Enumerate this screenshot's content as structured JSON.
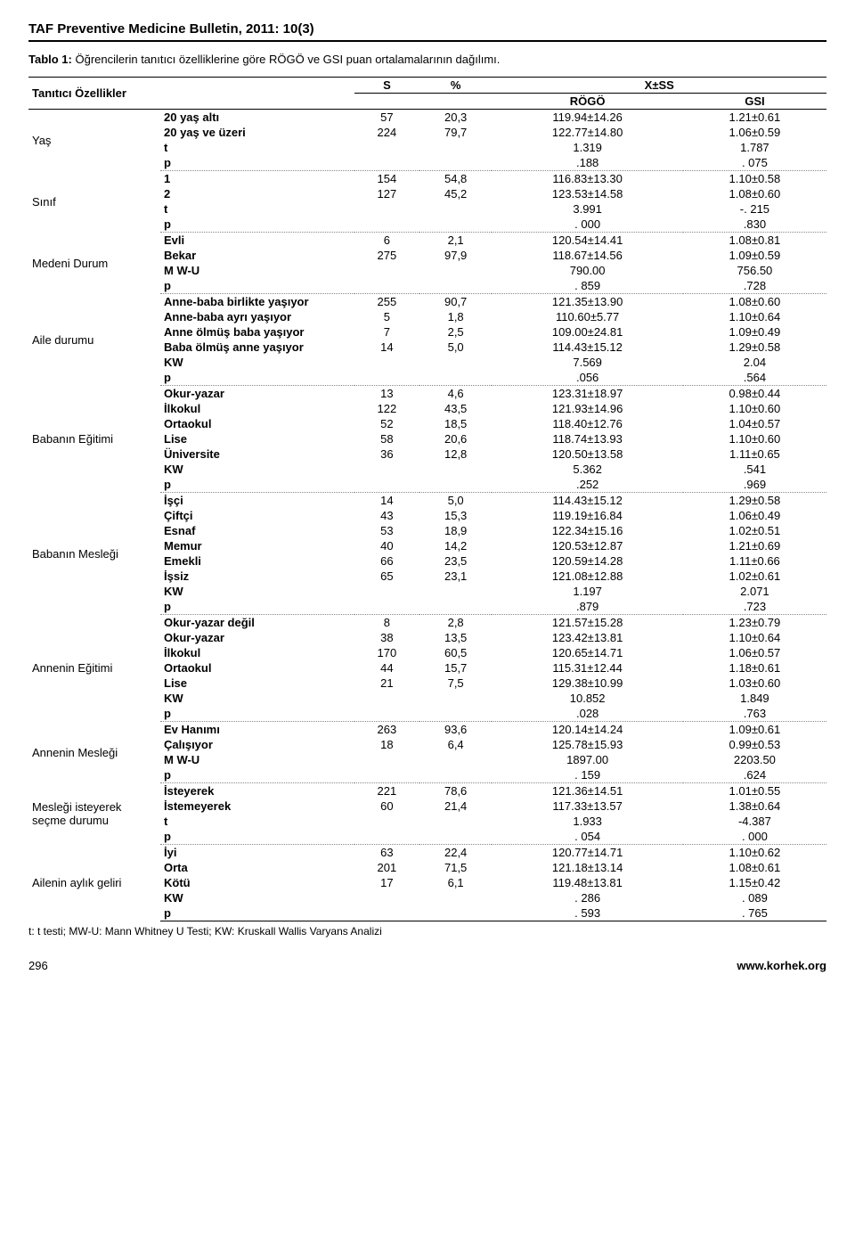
{
  "journal_title": "TAF Preventive Medicine Bulletin, 2011: 10(3)",
  "caption_prefix": "Tablo 1:",
  "caption_text": "Öğrencilerin tanıtıcı özelliklerine göre RÖGÖ ve GSI puan ortalamalarının dağılımı.",
  "headers": {
    "group": "Tanıtıcı Özellikler",
    "S": "S",
    "pct": "%",
    "xss": "X±SS",
    "rogo": "RÖGÖ",
    "gsi": "GSI"
  },
  "groups": [
    {
      "name": "Yaş",
      "rows": [
        {
          "label": "20 yaş altı",
          "S": "57",
          "pct": "20,3",
          "rogo": "119.94±14.26",
          "gsi": "1.21±0.61"
        },
        {
          "label": "20 yaş ve üzeri",
          "S": "224",
          "pct": "79,7",
          "rogo": "122.77±14.80",
          "gsi": "1.06±0.59"
        },
        {
          "label": "t",
          "S": "",
          "pct": "",
          "rogo": "1.319",
          "gsi": "1.787"
        },
        {
          "label": "p",
          "S": "",
          "pct": "",
          "rogo": ".188",
          "gsi": ". 075"
        }
      ]
    },
    {
      "name": "Sınıf",
      "rows": [
        {
          "label": "1",
          "S": "154",
          "pct": "54,8",
          "rogo": "116.83±13.30",
          "gsi": "1.10±0.58"
        },
        {
          "label": "2",
          "S": "127",
          "pct": "45,2",
          "rogo": "123.53±14.58",
          "gsi": "1.08±0.60"
        },
        {
          "label": "t",
          "S": "",
          "pct": "",
          "rogo": "3.991",
          "gsi": "-. 215"
        },
        {
          "label": "p",
          "S": "",
          "pct": "",
          "rogo": ". 000",
          "gsi": ".830"
        }
      ]
    },
    {
      "name": "Medeni Durum",
      "rows": [
        {
          "label": "Evli",
          "S": "6",
          "pct": "2,1",
          "rogo": "120.54±14.41",
          "gsi": "1.08±0.81"
        },
        {
          "label": "Bekar",
          "S": "275",
          "pct": "97,9",
          "rogo": "118.67±14.56",
          "gsi": "1.09±0.59"
        },
        {
          "label": "M W-U",
          "S": "",
          "pct": "",
          "rogo": "790.00",
          "gsi": "756.50"
        },
        {
          "label": "p",
          "S": "",
          "pct": "",
          "rogo": ". 859",
          "gsi": ".728"
        }
      ]
    },
    {
      "name": "Aile durumu",
      "rows": [
        {
          "label": "Anne-baba birlikte yaşıyor",
          "S": "255",
          "pct": "90,7",
          "rogo": "121.35±13.90",
          "gsi": "1.08±0.60"
        },
        {
          "label": "Anne-baba ayrı yaşıyor",
          "S": "5",
          "pct": "1,8",
          "rogo": "110.60±5.77",
          "gsi": "1.10±0.64"
        },
        {
          "label": "Anne ölmüş baba yaşıyor",
          "S": "7",
          "pct": "2,5",
          "rogo": "109.00±24.81",
          "gsi": "1.09±0.49"
        },
        {
          "label": "Baba ölmüş anne yaşıyor",
          "S": "14",
          "pct": "5,0",
          "rogo": "114.43±15.12",
          "gsi": "1.29±0.58"
        },
        {
          "label": "KW",
          "S": "",
          "pct": "",
          "rogo": "7.569",
          "gsi": "2.04"
        },
        {
          "label": "p",
          "S": "",
          "pct": "",
          "rogo": ".056",
          "gsi": ".564"
        }
      ]
    },
    {
      "name": "Babanın Eğitimi",
      "rows": [
        {
          "label": "Okur-yazar",
          "S": "13",
          "pct": "4,6",
          "rogo": "123.31±18.97",
          "gsi": "0.98±0.44"
        },
        {
          "label": "İlkokul",
          "S": "122",
          "pct": "43,5",
          "rogo": "121.93±14.96",
          "gsi": "1.10±0.60"
        },
        {
          "label": "Ortaokul",
          "S": "52",
          "pct": "18,5",
          "rogo": "118.40±12.76",
          "gsi": "1.04±0.57"
        },
        {
          "label": "Lise",
          "S": "58",
          "pct": "20,6",
          "rogo": "118.74±13.93",
          "gsi": "1.10±0.60"
        },
        {
          "label": "Üniversite",
          "S": "36",
          "pct": "12,8",
          "rogo": "120.50±13.58",
          "gsi": "1.11±0.65"
        },
        {
          "label": "KW",
          "S": "",
          "pct": "",
          "rogo": "5.362",
          "gsi": ".541"
        },
        {
          "label": "p",
          "S": "",
          "pct": "",
          "rogo": ".252",
          "gsi": ".969"
        }
      ]
    },
    {
      "name": "Babanın Mesleği",
      "rows": [
        {
          "label": "İşçi",
          "S": "14",
          "pct": "5,0",
          "rogo": "114.43±15.12",
          "gsi": "1.29±0.58"
        },
        {
          "label": "Çiftçi",
          "S": "43",
          "pct": "15,3",
          "rogo": "119.19±16.84",
          "gsi": "1.06±0.49"
        },
        {
          "label": "Esnaf",
          "S": "53",
          "pct": "18,9",
          "rogo": "122.34±15.16",
          "gsi": "1.02±0.51"
        },
        {
          "label": "Memur",
          "S": "40",
          "pct": "14,2",
          "rogo": "120.53±12.87",
          "gsi": "1.21±0.69"
        },
        {
          "label": "Emekli",
          "S": "66",
          "pct": "23,5",
          "rogo": "120.59±14.28",
          "gsi": "1.11±0.66"
        },
        {
          "label": "İşsiz",
          "S": "65",
          "pct": "23,1",
          "rogo": "121.08±12.88",
          "gsi": "1.02±0.61"
        },
        {
          "label": "KW",
          "S": "",
          "pct": "",
          "rogo": "1.197",
          "gsi": "2.071"
        },
        {
          "label": "p",
          "S": "",
          "pct": "",
          "rogo": ".879",
          "gsi": ".723"
        }
      ]
    },
    {
      "name": "Annenin Eğitimi",
      "rows": [
        {
          "label": "Okur-yazar değil",
          "S": "8",
          "pct": "2,8",
          "rogo": "121.57±15.28",
          "gsi": "1.23±0.79"
        },
        {
          "label": "Okur-yazar",
          "S": "38",
          "pct": "13,5",
          "rogo": "123.42±13.81",
          "gsi": "1.10±0.64"
        },
        {
          "label": "İlkokul",
          "S": "170",
          "pct": "60,5",
          "rogo": "120.65±14.71",
          "gsi": "1.06±0.57"
        },
        {
          "label": "Ortaokul",
          "S": "44",
          "pct": "15,7",
          "rogo": "115.31±12.44",
          "gsi": "1.18±0.61"
        },
        {
          "label": "Lise",
          "S": "21",
          "pct": "7,5",
          "rogo": "129.38±10.99",
          "gsi": "1.03±0.60"
        },
        {
          "label": "KW",
          "S": "",
          "pct": "",
          "rogo": "10.852",
          "gsi": "1.849"
        },
        {
          "label": "p",
          "S": "",
          "pct": "",
          "rogo": ".028",
          "gsi": ".763"
        }
      ]
    },
    {
      "name": "Annenin Mesleği",
      "rows": [
        {
          "label": "Ev Hanımı",
          "S": "263",
          "pct": "93,6",
          "rogo": "120.14±14.24",
          "gsi": "1.09±0.61"
        },
        {
          "label": "Çalışıyor",
          "S": "18",
          "pct": "6,4",
          "rogo": "125.78±15.93",
          "gsi": "0.99±0.53"
        },
        {
          "label": "M W-U",
          "S": "",
          "pct": "",
          "rogo": "1897.00",
          "gsi": "2203.50"
        },
        {
          "label": "p",
          "S": "",
          "pct": "",
          "rogo": ". 159",
          "gsi": ".624"
        }
      ]
    },
    {
      "name": "Mesleği isteyerek seçme durumu",
      "rows": [
        {
          "label": "İsteyerek",
          "S": "221",
          "pct": "78,6",
          "rogo": "121.36±14.51",
          "gsi": "1.01±0.55"
        },
        {
          "label": "İstemeyerek",
          "S": "60",
          "pct": "21,4",
          "rogo": "117.33±13.57",
          "gsi": "1.38±0.64"
        },
        {
          "label": "t",
          "S": "",
          "pct": "",
          "rogo": "1.933",
          "gsi": "-4.387"
        },
        {
          "label": "p",
          "S": "",
          "pct": "",
          "rogo": ". 054",
          "gsi": ". 000"
        }
      ]
    },
    {
      "name": "Ailenin aylık geliri",
      "rows": [
        {
          "label": "İyi",
          "S": "63",
          "pct": "22,4",
          "rogo": "120.77±14.71",
          "gsi": "1.10±0.62"
        },
        {
          "label": "Orta",
          "S": "201",
          "pct": "71,5",
          "rogo": "121.18±13.14",
          "gsi": "1.08±0.61"
        },
        {
          "label": "Kötü",
          "S": "17",
          "pct": "6,1",
          "rogo": "119.48±13.81",
          "gsi": "1.15±0.42"
        },
        {
          "label": "KW",
          "S": "",
          "pct": "",
          "rogo": ". 286",
          "gsi": ". 089"
        },
        {
          "label": "p",
          "S": "",
          "pct": "",
          "rogo": ". 593",
          "gsi": ". 765"
        }
      ]
    }
  ],
  "footnote": "t: t testi;  MW-U: Mann Whitney U Testi; KW: Kruskall Wallis Varyans Analizi",
  "page_number": "296",
  "url": "www.korhek.org"
}
